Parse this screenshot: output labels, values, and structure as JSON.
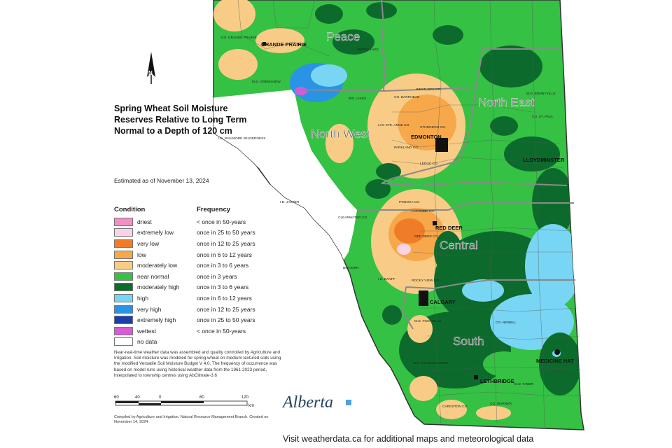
{
  "map": {
    "title": "Spring Wheat Soil Moisture Reserves Relative to Long Term Normal to a Depth of 120 cm",
    "estimated": "Estimated as of November 13, 2024",
    "regions": [
      "Peace",
      "North West",
      "North East",
      "Central",
      "South"
    ],
    "cities": [
      "GRANDE PRAIRIE",
      "EDMONTON",
      "LLOYDMINSTER",
      "RED DEER",
      "CALGARY",
      "MEDICINE HAT",
      "LETHBRIDGE"
    ],
    "counties": [
      "WESTLOCK CO.",
      "CO. BARRHEAD",
      "STURGEON CO.",
      "LAC STE. ANNE CO.",
      "PARKLAND CO.",
      "LEDUC CO.",
      "PONOKA CO.",
      "LACOMBE CO.",
      "RED DEER CO.",
      "ROCKY VIEW CO.",
      "M.D. FOOTHILLS",
      "CO. NEWELL",
      "M.D. BONNYVILLE",
      "CO. ST. PAUL",
      "M.D. TABER",
      "CARDSTON CO.",
      "CO. WARNER",
      "CLEARWATER CO.",
      "I.D. JASPER",
      "M.D. GREENVIEW",
      "CO. GRANDE PRAIRIE",
      "BIG LAKES",
      "I.D. WILLMORE WILDERNESS",
      "I.D. BANFF",
      "BIGHORN",
      "M.D. PINCHER CREEK",
      "SMOKY LAKE"
    ]
  },
  "legend": {
    "condition_header": "Condition",
    "frequency_header": "Frequency",
    "items": [
      {
        "condition": "driest",
        "frequency": "< once in 50-years",
        "color": "#f48fc4"
      },
      {
        "condition": "extremely low",
        "frequency": "once in 25 to 50 years",
        "color": "#fbd3e6"
      },
      {
        "condition": "very low",
        "frequency": "once in 12 to 25 years",
        "color": "#f07c2a"
      },
      {
        "condition": "low",
        "frequency": "once in 6 to 12 years",
        "color": "#f7a84a"
      },
      {
        "condition": "moderately low",
        "frequency": "once in 3 to 6 years",
        "color": "#f8cc86"
      },
      {
        "condition": "near normal",
        "frequency": "once in 3 years",
        "color": "#35c144"
      },
      {
        "condition": "moderately high",
        "frequency": "once in 3 to 6 years",
        "color": "#0c6b2c"
      },
      {
        "condition": "high",
        "frequency": "once in 6 to 12 years",
        "color": "#78d5f4"
      },
      {
        "condition": "very high",
        "frequency": "once in 12 to 25 years",
        "color": "#2b93e4"
      },
      {
        "condition": "extremely high",
        "frequency": "once in 25 to 50 years",
        "color": "#1a3fa8"
      },
      {
        "condition": "wettest",
        "frequency": "< once in 50-years",
        "color": "#d85ad8"
      },
      {
        "condition": "no data",
        "frequency": "",
        "color": "#ffffff"
      }
    ]
  },
  "notes": "Near-real-time weather data was assembled and quality controlled by Agriculture and Irrigation. Soil moisture was modeled for spring wheat on medium textured soils using the modified Versatile Soil Moisture Budget V 4.0. The frequency of occurrence was based on model runs using historical weather data from the 1961-2023 period, interpolated to township centres using AbClimate-3.6",
  "scale": {
    "ticks": [
      "60",
      "40",
      "0",
      "60",
      "120"
    ],
    "unit": "km"
  },
  "credit": "Compiled by Agriculture and Irrigation, Natural Resource Management Branch. Created on November 14, 2024",
  "logo_text": "Alberta",
  "footer": "Visit weatherdata.ca for additional maps and meteorological data",
  "north_label": "N"
}
